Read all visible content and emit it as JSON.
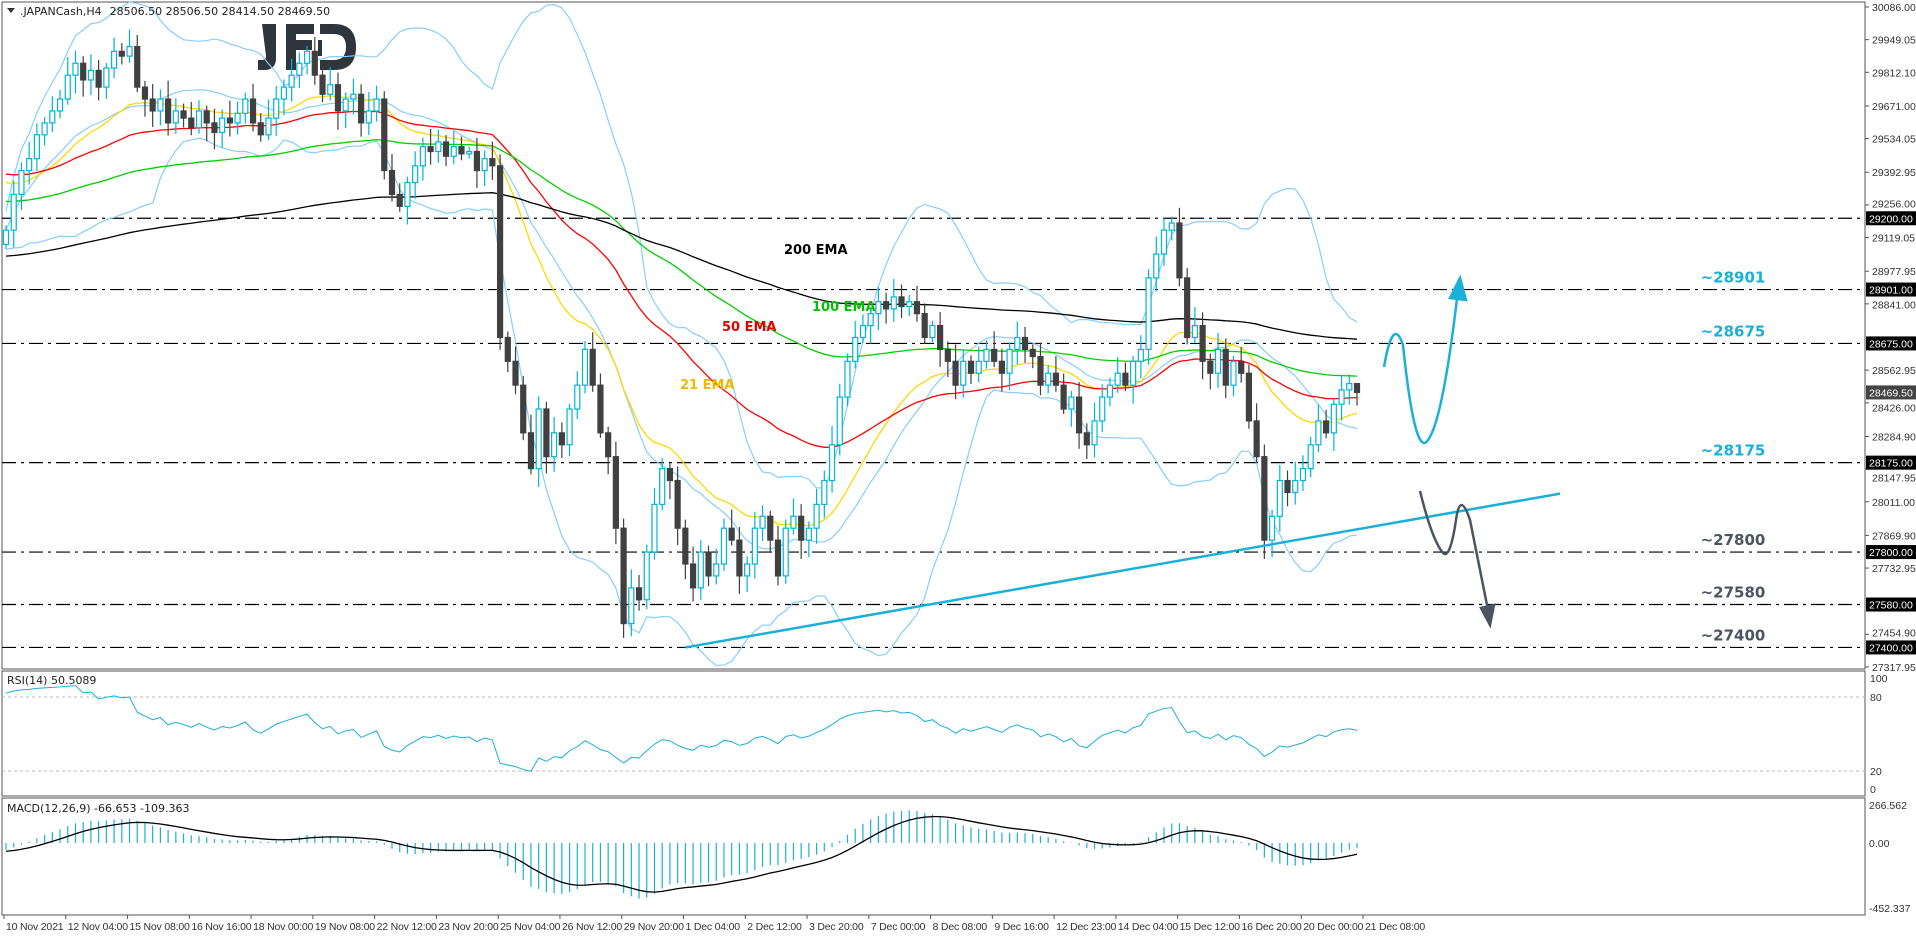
{
  "header": {
    "symbol": ".JAPANCash,H4",
    "ohlc": "28506.50 28506.50 28414.50 28469.50"
  },
  "logo": {
    "text": "JFD"
  },
  "chart_data": {
    "type": "candlestick",
    "symbol": ".JAPANCash",
    "timeframe": "H4",
    "ylim": [
      27317.95,
      30086.0
    ],
    "price_ticks": [
      "30086.00",
      "29949.05",
      "29812.10",
      "29671.00",
      "29534.05",
      "29392.95",
      "29256.00",
      "29119.05",
      "28977.95",
      "28841.00",
      "28562.95",
      "28426.00",
      "28284.90",
      "28147.95",
      "28011.00",
      "27869.90",
      "27732.95",
      "27454.90",
      "27317.95"
    ],
    "current_price": "28469.50",
    "x_ticks": [
      "10 Nov 2021",
      "12 Nov 04:00",
      "15 Nov 08:00",
      "16 Nov 16:00",
      "18 Nov 00:00",
      "19 Nov 08:00",
      "22 Nov 12:00",
      "23 Nov 20:00",
      "25 Nov 04:00",
      "26 Nov 12:00",
      "29 Nov 20:00",
      "1 Dec 04:00",
      "2 Dec 12:00",
      "3 Dec 20:00",
      "7 Dec 00:00",
      "8 Dec 08:00",
      "9 Dec 16:00",
      "12 Dec 23:00",
      "14 Dec 04:00",
      "15 Dec 12:00",
      "16 Dec 20:00",
      "20 Dec 00:00",
      "21 Dec 08:00"
    ],
    "closes": [
      29150,
      29300,
      29400,
      29450,
      29550,
      29600,
      29650,
      29700,
      29800,
      29850,
      29780,
      29820,
      29750,
      29830,
      29900,
      29880,
      29920,
      29750,
      29700,
      29650,
      29700,
      29600,
      29650,
      29620,
      29580,
      29650,
      29600,
      29560,
      29620,
      29600,
      29640,
      29700,
      29600,
      29550,
      29620,
      29700,
      29750,
      29800,
      29850,
      29900,
      29800,
      29720,
      29760,
      29650,
      29700,
      29720,
      29600,
      29650,
      29700,
      29400,
      29300,
      29250,
      29350,
      29420,
      29500,
      29480,
      29520,
      29460,
      29500,
      29470,
      29480,
      29400,
      29450,
      29420,
      28700,
      28600,
      28500,
      28300,
      28150,
      28400,
      28200,
      28300,
      28250,
      28400,
      28500,
      28650,
      28500,
      28300,
      28200,
      27900,
      27500,
      27650,
      27600,
      27800,
      28000,
      28150,
      28100,
      27900,
      27750,
      27650,
      27800,
      27700,
      27750,
      27900,
      27850,
      27700,
      27750,
      27900,
      27950,
      27850,
      27700,
      27900,
      27950,
      27850,
      27900,
      28000,
      28100,
      28250,
      28450,
      28600,
      28700,
      28750,
      28800,
      28850,
      28820,
      28870,
      28830,
      28850,
      28800,
      28700,
      28750,
      28650,
      28600,
      28500,
      28600,
      28550,
      28600,
      28650,
      28600,
      28550,
      28650,
      28700,
      28650,
      28620,
      28500,
      28550,
      28500,
      28400,
      28450,
      28300,
      28250,
      28350,
      28450,
      28500,
      28550,
      28500,
      28600,
      28650,
      28950,
      29050,
      29150,
      29180,
      28950,
      28700,
      28750,
      28600,
      28550,
      28650,
      28500,
      28600,
      28550,
      28350,
      28200,
      27850,
      27950,
      28100,
      28050,
      28100,
      28150,
      28250,
      28350,
      28300,
      28420,
      28480,
      28506.5,
      28469.5
    ],
    "last_bar": {
      "open": 28506.5,
      "high": 28506.5,
      "low": 28414.5,
      "close": 28469.5
    },
    "indicators": {
      "ema": [
        {
          "label": "21 EMA",
          "period": 21,
          "color": "#ffd700"
        },
        {
          "label": "50 EMA",
          "period": 50,
          "color": "#ff0000"
        },
        {
          "label": "100 EMA",
          "period": 100,
          "color": "#00d000"
        },
        {
          "label": "200 EMA",
          "period": 200,
          "color": "#000000"
        }
      ],
      "bollinger": {
        "period": 20,
        "deviation": 2,
        "color": "#87cefa"
      }
    },
    "levels": [
      {
        "price": 29200,
        "axis_label": "29200.00",
        "text": ""
      },
      {
        "price": 28901,
        "axis_label": "28901.00",
        "text": "~28901",
        "color": "#1ab0d8"
      },
      {
        "price": 28675,
        "axis_label": "28675.00",
        "text": "~28675",
        "color": "#1ab0d8"
      },
      {
        "price": 28175,
        "axis_label": "28175.00",
        "text": "~28175",
        "color": "#1ab0d8"
      },
      {
        "price": 27800,
        "axis_label": "27800.00",
        "text": "~27800",
        "color": "#4a5560"
      },
      {
        "price": 27580,
        "axis_label": "27580.00",
        "text": "~27580",
        "color": "#4a5560"
      },
      {
        "price": 27400,
        "axis_label": "27400.00",
        "text": "~27400",
        "color": "#4a5560"
      }
    ],
    "trendline": {
      "from": {
        "date": "1 Dec 04:00",
        "price": 27400
      },
      "to_price": 28045,
      "color": "#1ab0d8"
    },
    "rsi": {
      "label": "RSI(14) 50.5089",
      "period": 14,
      "ticks": [
        "100",
        "80",
        "20",
        "0"
      ],
      "levels": [
        80,
        20
      ],
      "color": "#1ab0d8"
    },
    "macd": {
      "label": "MACD(12,26,9) -66.653 -109.363",
      "ticks": [
        "266.562",
        "0.00",
        "-452.337"
      ],
      "ylim": [
        -452.337,
        266.562
      ],
      "hist_color": "#1ab0d8",
      "signal_color": "#000000"
    }
  }
}
